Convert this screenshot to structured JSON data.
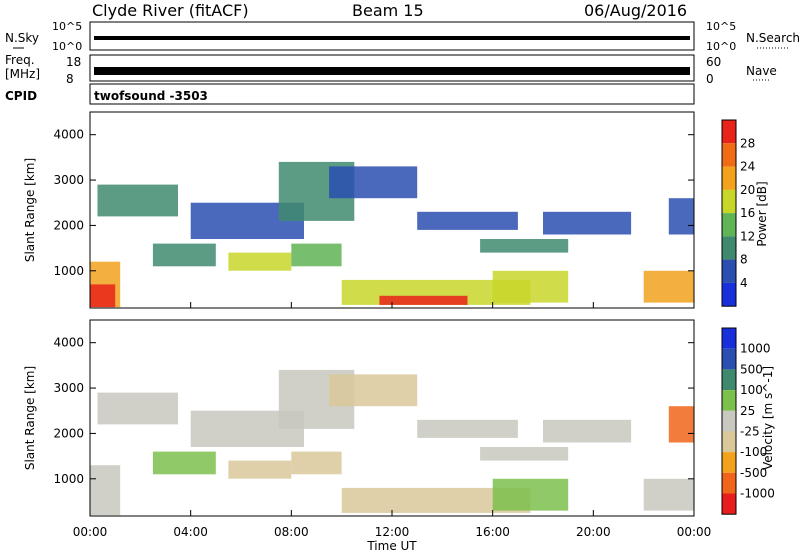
{
  "header": {
    "title": "Clyde River (fitACF)",
    "beam": "Beam 15",
    "date": "06/Aug/2016"
  },
  "status_panels": {
    "nsky_label": "N.Sky",
    "nsearch_label": "N.Search",
    "freq_label_line1": "Freq.",
    "freq_label_line2": "[MHz]",
    "nave_label": "Nave",
    "cpid_label": "CPID",
    "cpid_value": "twofsound -3503",
    "noise_ticks": [
      "10^5",
      "10^0"
    ],
    "freq_ticks": [
      "18",
      "8"
    ],
    "nave_ticks": [
      "60",
      "0"
    ]
  },
  "x_axis": {
    "label": "Time UT",
    "ticks": [
      "00:00",
      "04:00",
      "08:00",
      "12:00",
      "16:00",
      "20:00",
      "00:00"
    ],
    "tick_hours": [
      0,
      4,
      8,
      12,
      16,
      20,
      24
    ]
  },
  "colors": {
    "power_scale": [
      "#1a2fdc",
      "#2a4fb0",
      "#3f8a6e",
      "#5fb455",
      "#c8d62a",
      "#f2a21c",
      "#ef6b15",
      "#e8231a"
    ],
    "velocity_scale": [
      "#e81e1e",
      "#f0651a",
      "#f2a21c",
      "#d9c89a",
      "#c8c8c0",
      "#7cc04c",
      "#3f8a6e",
      "#2a4fb0",
      "#1a2fdc"
    ]
  },
  "chart_data": [
    {
      "type": "heatmap",
      "name": "power",
      "ylabel": "Slant Range [km]",
      "xlabel": "Time UT",
      "xlim": [
        0,
        24
      ],
      "ylim": [
        180,
        4500
      ],
      "yticks": [
        1000,
        2000,
        3000,
        4000
      ],
      "colorbar": {
        "label": "Power [dB]",
        "ticks": [
          "28",
          "24",
          "20",
          "16",
          "12",
          "8",
          "4"
        ],
        "range": [
          0,
          30
        ]
      },
      "regions": [
        {
          "t0": 0.0,
          "t1": 1.2,
          "r0": 200,
          "r1": 1200,
          "value": 22
        },
        {
          "t0": 0.0,
          "t1": 1.0,
          "r0": 200,
          "r1": 700,
          "value": 29
        },
        {
          "t0": 0.3,
          "t1": 3.5,
          "r0": 2200,
          "r1": 2900,
          "value": 8
        },
        {
          "t0": 2.5,
          "t1": 5.0,
          "r0": 1100,
          "r1": 1600,
          "value": 10
        },
        {
          "t0": 4.0,
          "t1": 8.5,
          "r0": 1700,
          "r1": 2500,
          "value": 6
        },
        {
          "t0": 5.5,
          "t1": 8.0,
          "r0": 1000,
          "r1": 1400,
          "value": 16
        },
        {
          "t0": 7.5,
          "t1": 10.5,
          "r0": 2100,
          "r1": 3400,
          "value": 8
        },
        {
          "t0": 8.0,
          "t1": 10.0,
          "r0": 1100,
          "r1": 1600,
          "value": 12
        },
        {
          "t0": 9.5,
          "t1": 13.0,
          "r0": 2600,
          "r1": 3300,
          "value": 6
        },
        {
          "t0": 10.0,
          "t1": 17.5,
          "r0": 250,
          "r1": 800,
          "value": 17
        },
        {
          "t0": 11.5,
          "t1": 15.0,
          "r0": 250,
          "r1": 450,
          "value": 28
        },
        {
          "t0": 13.0,
          "t1": 17.0,
          "r0": 1900,
          "r1": 2300,
          "value": 6
        },
        {
          "t0": 15.5,
          "t1": 19.0,
          "r0": 1400,
          "r1": 1700,
          "value": 10
        },
        {
          "t0": 16.0,
          "t1": 19.0,
          "r0": 300,
          "r1": 1000,
          "value": 18
        },
        {
          "t0": 18.0,
          "t1": 21.5,
          "r0": 1800,
          "r1": 2300,
          "value": 6
        },
        {
          "t0": 22.0,
          "t1": 24.0,
          "r0": 300,
          "r1": 1000,
          "value": 22
        },
        {
          "t0": 23.0,
          "t1": 24.0,
          "r0": 1800,
          "r1": 2600,
          "value": 6
        }
      ]
    },
    {
      "type": "heatmap",
      "name": "velocity",
      "ylabel": "Slant Range [km]",
      "xlabel": "Time UT",
      "xlim": [
        0,
        24
      ],
      "ylim": [
        180,
        4500
      ],
      "yticks": [
        1000,
        2000,
        3000,
        4000
      ],
      "colorbar": {
        "label": "Velocity [m s^-1]",
        "ticks": [
          "1000",
          "500",
          "100",
          "25",
          "-25",
          "-100",
          "-500",
          "-1000"
        ],
        "range": [
          -1200,
          1200
        ]
      },
      "regions": [
        {
          "t0": 0.0,
          "t1": 1.2,
          "r0": 200,
          "r1": 1300,
          "value": 0
        },
        {
          "t0": 0.3,
          "t1": 3.5,
          "r0": 2200,
          "r1": 2900,
          "value": -120
        },
        {
          "t0": 2.5,
          "t1": 5.0,
          "r0": 1100,
          "r1": 1600,
          "value": 150
        },
        {
          "t0": 4.0,
          "t1": 8.5,
          "r0": 1700,
          "r1": 2500,
          "value": 0
        },
        {
          "t0": 5.5,
          "t1": 8.0,
          "r0": 1000,
          "r1": 1400,
          "value": -300
        },
        {
          "t0": 7.5,
          "t1": 10.5,
          "r0": 2100,
          "r1": 3400,
          "value": 0
        },
        {
          "t0": 8.0,
          "t1": 10.0,
          "r0": 1100,
          "r1": 1600,
          "value": -200
        },
        {
          "t0": 9.5,
          "t1": 13.0,
          "r0": 2600,
          "r1": 3300,
          "value": -300
        },
        {
          "t0": 10.0,
          "t1": 17.5,
          "r0": 250,
          "r1": 800,
          "value": -350
        },
        {
          "t0": 13.0,
          "t1": 17.0,
          "r0": 1900,
          "r1": 2300,
          "value": 0
        },
        {
          "t0": 15.5,
          "t1": 19.0,
          "r0": 1400,
          "r1": 1700,
          "value": 0
        },
        {
          "t0": 16.0,
          "t1": 19.0,
          "r0": 300,
          "r1": 1000,
          "value": 200
        },
        {
          "t0": 18.0,
          "t1": 21.5,
          "r0": 1800,
          "r1": 2300,
          "value": 0
        },
        {
          "t0": 22.0,
          "t1": 24.0,
          "r0": 300,
          "r1": 1000,
          "value": 0
        },
        {
          "t0": 23.0,
          "t1": 24.0,
          "r0": 1800,
          "r1": 2600,
          "value": -700
        }
      ]
    }
  ]
}
